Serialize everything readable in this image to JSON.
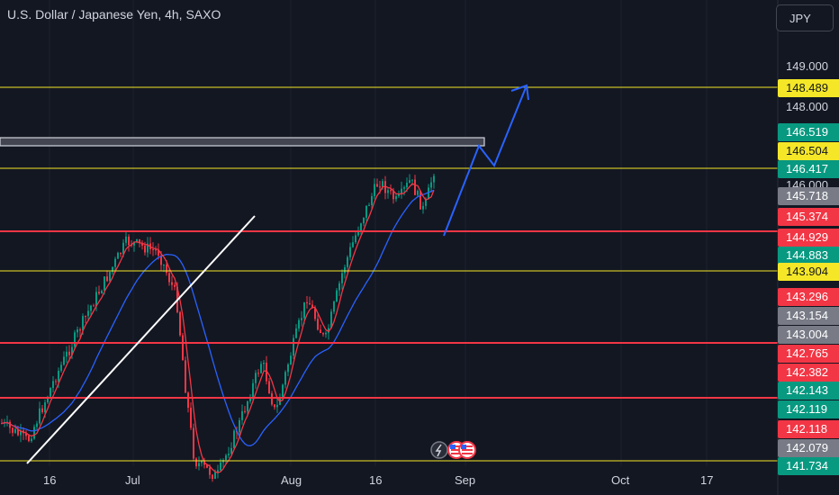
{
  "header": {
    "title": "U.S. Dollar / Japanese Yen, 4h, SAXO",
    "currency_button": "JPY"
  },
  "colors": {
    "background": "#131722",
    "red_line": "#f23645",
    "yellow_line": "#f5e727",
    "blue_arrow": "#2962ff",
    "ma_blue": "#2962ff",
    "ma_red": "#f23645",
    "trendline": "#ffffff",
    "candle_up": "#089981",
    "candle_down": "#f23645"
  },
  "price_axis": {
    "ticks": [
      "149.000",
      "148.000",
      "146.000"
    ]
  },
  "price_labels": [
    {
      "value": "148.489",
      "bg": "#f5e727",
      "fg": "#131722"
    },
    {
      "value": "146.519",
      "bg": "#089981",
      "fg": "#ffffff"
    },
    {
      "value": "146.504",
      "bg": "#f5e727",
      "fg": "#131722"
    },
    {
      "value": "146.417",
      "bg": "#089981",
      "fg": "#ffffff"
    },
    {
      "value": "145.718",
      "bg": "#787b86",
      "fg": "#ffffff"
    },
    {
      "value": "145.374",
      "bg": "#f23645",
      "fg": "#ffffff"
    },
    {
      "value": "144.929",
      "bg": "#f23645",
      "fg": "#ffffff"
    },
    {
      "value": "144.883",
      "bg": "#089981",
      "fg": "#ffffff"
    },
    {
      "value": "143.904",
      "bg": "#f5e727",
      "fg": "#131722"
    },
    {
      "value": "143.296",
      "bg": "#f23645",
      "fg": "#ffffff"
    },
    {
      "value": "143.154",
      "bg": "#787b86",
      "fg": "#ffffff"
    },
    {
      "value": "143.004",
      "bg": "#787b86",
      "fg": "#ffffff"
    },
    {
      "value": "142.765",
      "bg": "#f23645",
      "fg": "#ffffff"
    },
    {
      "value": "142.382",
      "bg": "#f23645",
      "fg": "#ffffff"
    },
    {
      "value": "142.143",
      "bg": "#089981",
      "fg": "#ffffff"
    },
    {
      "value": "142.119",
      "bg": "#089981",
      "fg": "#ffffff"
    },
    {
      "value": "142.118",
      "bg": "#f23645",
      "fg": "#ffffff"
    },
    {
      "value": "142.079",
      "bg": "#787b86",
      "fg": "#ffffff"
    },
    {
      "value": "141.734",
      "bg": "#089981",
      "fg": "#ffffff"
    }
  ],
  "time_axis": {
    "labels": [
      "16",
      "Jul",
      "Aug",
      "16",
      "Sep",
      "Oct",
      "17"
    ]
  },
  "event_icons": [
    "lightning-icon",
    "us-flag-icon",
    "us-flag-icon"
  ]
}
